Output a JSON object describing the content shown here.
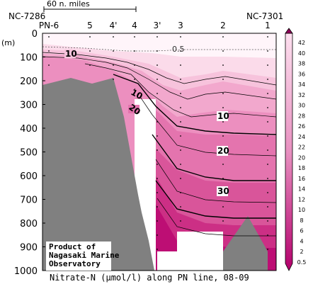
{
  "chart_data": {
    "type": "heatmap",
    "scale_bar": {
      "label": "60 n. miles"
    },
    "start_station_id": "NC-7286",
    "end_station_id": "NC-7301",
    "ylabel": "(m)",
    "ylim": [
      0,
      1000
    ],
    "y_ticks": [
      0,
      100,
      200,
      300,
      400,
      500,
      600,
      700,
      800,
      900,
      1000
    ],
    "stations": [
      "PN-6",
      "5",
      "4'",
      "4",
      "3'",
      "3",
      "2",
      "1"
    ],
    "contour_labels": [
      "10",
      "10",
      "20",
      "10",
      "20",
      "30"
    ],
    "surface_label": "0.5",
    "caption": "Nitrate-N (μmol/l) along PN line, 08-09",
    "credit": [
      "Product of",
      "Nagasaki Marine",
      "Observatory"
    ],
    "colorbar_levels": [
      "42",
      "40",
      "38",
      "36",
      "34",
      "32",
      "30",
      "28",
      "26",
      "24",
      "22",
      "20",
      "18",
      "16",
      "14",
      "12",
      "10",
      "8",
      "6",
      "4",
      "2",
      "0.5"
    ],
    "colors": {
      "low": "#fff5fa",
      "high": "#b0006a",
      "seafloor": "#808080"
    }
  }
}
